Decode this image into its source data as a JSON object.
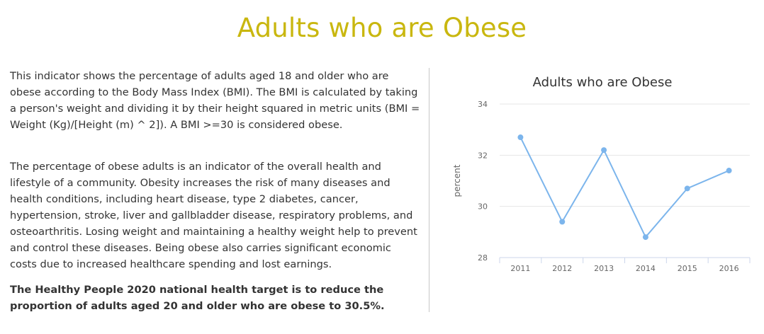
{
  "page": {
    "title": "Adults who are Obese"
  },
  "content": {
    "paragraph_1": "This indicator shows the percentage of adults aged 18 and older who are obese according to the Body Mass Index (BMI). The BMI is calculated by taking a person's weight and dividing it by their height squared in metric units (BMI = Weight (Kg)/[Height (m) ^ 2]). A BMI >=30 is considered obese.",
    "paragraph_2": "The percentage of obese adults is an indicator of the overall health and lifestyle of a community. Obesity increases the risk of many diseases and health conditions, including heart disease, type 2 diabetes, cancer, hypertension, stroke, liver and gallbladder disease, respiratory problems, and osteoarthritis. Losing weight and maintaining a healthy weight help to prevent and control these diseases. Being obese also carries significant economic costs due to increased healthcare spending and lost earnings.",
    "paragraph_3": "The Healthy People 2020 national health target is to reduce the proportion of adults aged 20 and older who are obese to 30.5%."
  },
  "colors": {
    "title": "#c9b70f",
    "line": "#7cb5ec",
    "grid": "#e6e6e6",
    "axis": "#ccd6eb",
    "tick_text": "#666666"
  },
  "chart_data": {
    "type": "line",
    "title": "Adults who are Obese",
    "ylabel": "percent",
    "xlabel": "",
    "categories": [
      "2011",
      "2012",
      "2013",
      "2014",
      "2015",
      "2016"
    ],
    "series": [
      {
        "values": [
          32.7,
          29.4,
          32.2,
          28.8,
          30.7,
          31.4
        ]
      }
    ],
    "ylim": [
      28,
      34
    ],
    "yticks": [
      28,
      30,
      32,
      34
    ],
    "grid": true,
    "legend": "none"
  }
}
